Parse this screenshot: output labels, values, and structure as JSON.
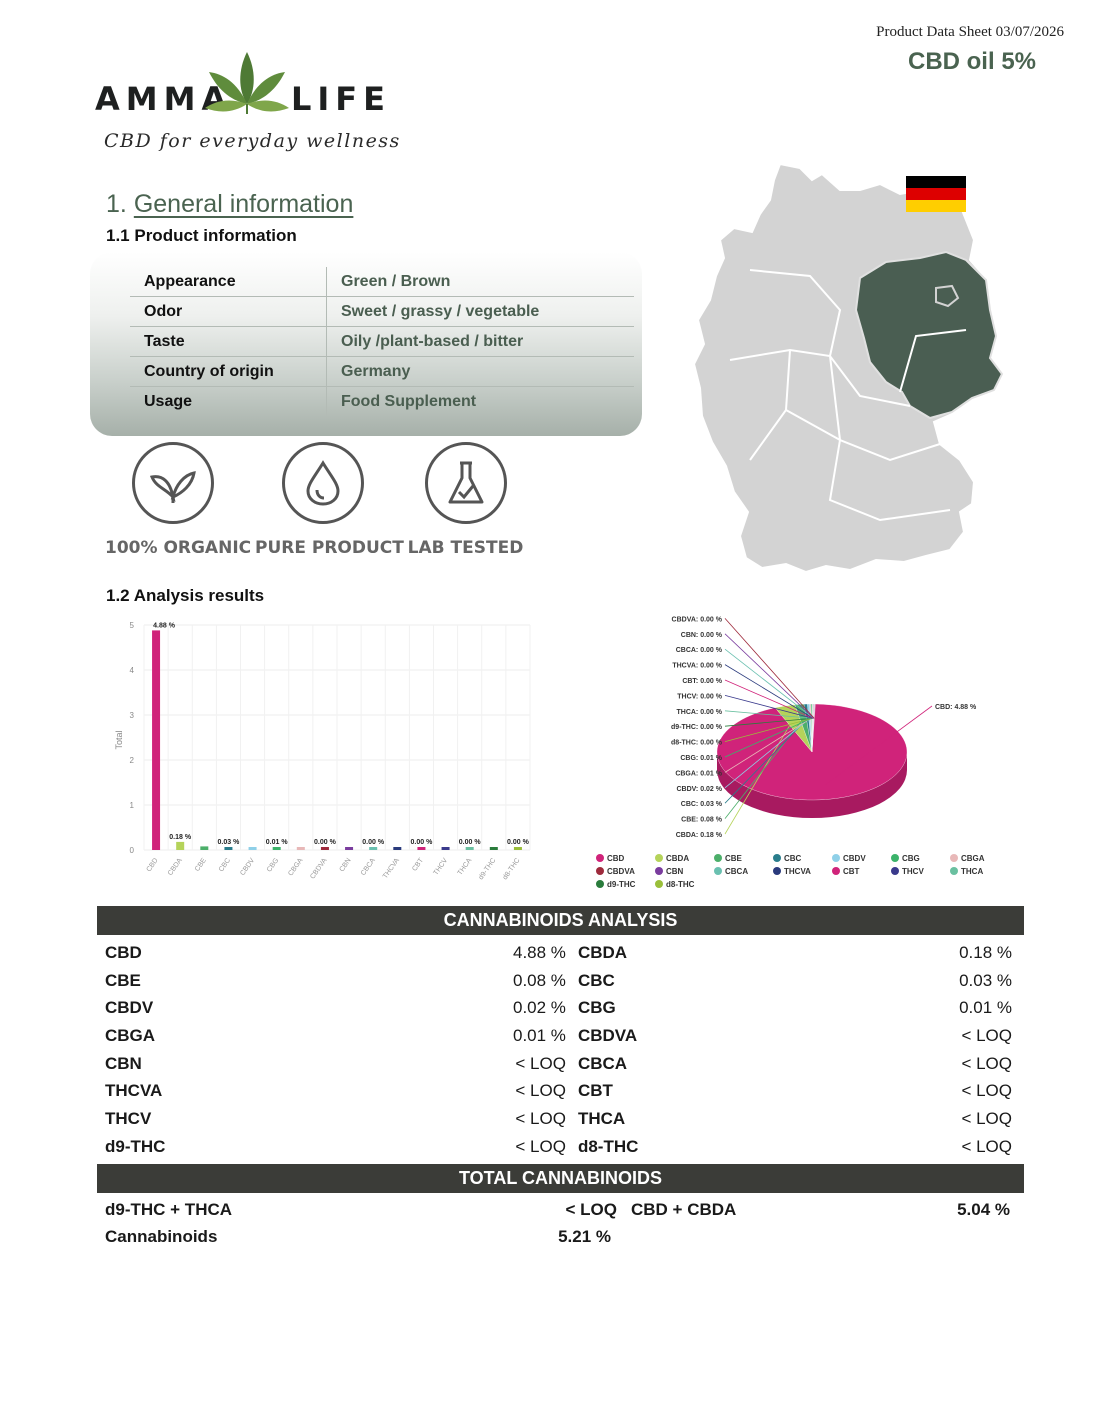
{
  "header": {
    "meta": "Product Data Sheet 03/07/2026",
    "product": "CBD oil 5%"
  },
  "brand": {
    "left": "AMMA",
    "right": "LIFE",
    "tagline": "CBD for everyday wellness"
  },
  "section1": {
    "number": "1.",
    "title": "General information"
  },
  "subsection_product": "1.1  Product information",
  "product_info": [
    {
      "key": "Appearance",
      "value": "Green / Brown"
    },
    {
      "key": "Odor",
      "value": "Sweet / grassy / vegetable"
    },
    {
      "key": "Taste",
      "value": "Oily /plant-based / bitter"
    },
    {
      "key": "Country of origin",
      "value": "Germany"
    },
    {
      "key": "Usage",
      "value": "Food Supplement"
    }
  ],
  "badges": [
    {
      "label": "100% ORGANIC",
      "icon": "leaf-icon"
    },
    {
      "label": "PURE PRODUCT",
      "icon": "drop-icon"
    },
    {
      "label": "LAB TESTED",
      "icon": "flask-icon"
    }
  ],
  "subsection_analysis": "1.2  Analysis results",
  "colors": {
    "accent": "#4a6350",
    "header_bar": "#3b3c38",
    "map_highlight": "#4a5e52",
    "map_base": "#d3d3d3",
    "cbd": "#d0237a"
  },
  "chart_data": [
    {
      "type": "bar",
      "categories": [
        "CBD",
        "CBDA",
        "CBE",
        "CBC",
        "CBDV",
        "CBG",
        "CBGA",
        "CBDVA",
        "CBN",
        "CBCA",
        "THCVA",
        "CBT",
        "THCV",
        "THCA",
        "d9-THC",
        "d8-THC"
      ],
      "values": [
        4.88,
        0.18,
        0.08,
        0.03,
        0.02,
        0.01,
        0.01,
        0,
        0,
        0,
        0,
        0,
        0,
        0,
        0,
        0
      ],
      "data_labels": [
        "4.88 %",
        "0.18 %",
        "",
        "0.03 %",
        "",
        "0.01 %",
        "",
        "0.00 %",
        "",
        "0.00 %",
        "",
        "0.00 %",
        "",
        "0.00 %",
        "",
        "0.00 %"
      ],
      "colors": [
        "#d0237a",
        "#b5d35a",
        "#4caf6a",
        "#2a7d8c",
        "#8fd0e8",
        "#3bb36a",
        "#e8b8b8",
        "#9e2a3c",
        "#7a3c9e",
        "#6ac0b0",
        "#2a3a7c",
        "#d0237a",
        "#3a3a8c",
        "#6ac0a0",
        "#2a7c3c",
        "#9abf3a"
      ],
      "ylabel": "Total",
      "yticks": [
        0,
        1,
        2,
        3,
        4,
        5
      ],
      "ylim": [
        0,
        5
      ]
    },
    {
      "type": "pie",
      "slices": [
        {
          "label": "CBD: 4.88 %",
          "value": 4.88,
          "color": "#d0237a"
        },
        {
          "label": "CBDA: 0.18 %",
          "value": 0.18,
          "color": "#b5d35a"
        },
        {
          "label": "CBE: 0.08 %",
          "value": 0.08,
          "color": "#4caf6a"
        },
        {
          "label": "CBC: 0.03 %",
          "value": 0.03,
          "color": "#2a7d8c"
        },
        {
          "label": "CBDV: 0.02 %",
          "value": 0.02,
          "color": "#8fd0e8"
        },
        {
          "label": "CBGA: 0.01 %",
          "value": 0.01,
          "color": "#e8b8b8"
        },
        {
          "label": "CBG: 0.01 %",
          "value": 0.01,
          "color": "#3bb36a"
        },
        {
          "label": "d8-THC: 0.00 %",
          "value": 0,
          "color": "#9abf3a"
        },
        {
          "label": "d9-THC: 0.00 %",
          "value": 0,
          "color": "#2a7c3c"
        },
        {
          "label": "THCA: 0.00 %",
          "value": 0,
          "color": "#6ac0a0"
        },
        {
          "label": "THCV: 0.00 %",
          "value": 0,
          "color": "#3a3a8c"
        },
        {
          "label": "CBT: 0.00 %",
          "value": 0,
          "color": "#d0237a"
        },
        {
          "label": "THCVA: 0.00 %",
          "value": 0,
          "color": "#2a3a7c"
        },
        {
          "label": "CBCA: 0.00 %",
          "value": 0,
          "color": "#6ac0b0"
        },
        {
          "label": "CBN: 0.00 %",
          "value": 0,
          "color": "#7a3c9e"
        },
        {
          "label": "CBDVA: 0.00 %",
          "value": 0,
          "color": "#9e2a3c"
        }
      ],
      "legend": [
        {
          "name": "CBD",
          "color": "#d0237a"
        },
        {
          "name": "CBDA",
          "color": "#b5d35a"
        },
        {
          "name": "CBE",
          "color": "#4caf6a"
        },
        {
          "name": "CBC",
          "color": "#2a7d8c"
        },
        {
          "name": "CBDV",
          "color": "#8fd0e8"
        },
        {
          "name": "CBG",
          "color": "#3bb36a"
        },
        {
          "name": "CBGA",
          "color": "#e8b8b8"
        },
        {
          "name": "CBDVA",
          "color": "#9e2a3c"
        },
        {
          "name": "CBN",
          "color": "#7a3c9e"
        },
        {
          "name": "CBCA",
          "color": "#6ac0b0"
        },
        {
          "name": "THCVA",
          "color": "#2a3a7c"
        },
        {
          "name": "CBT",
          "color": "#d0237a"
        },
        {
          "name": "THCV",
          "color": "#3a3a8c"
        },
        {
          "name": "THCA",
          "color": "#6ac0a0"
        },
        {
          "name": "d9-THC",
          "color": "#2a7c3c"
        },
        {
          "name": "d8-THC",
          "color": "#9abf3a"
        }
      ],
      "legend_placement": "bottom"
    }
  ],
  "analysis": {
    "title": "CANNABINOIDS ANALYSIS",
    "rows": [
      {
        "k1": "CBD",
        "v1": "4.88 %",
        "k2": "CBDA",
        "v2": "0.18 %"
      },
      {
        "k1": "CBE",
        "v1": "0.08 %",
        "k2": "CBC",
        "v2": "0.03 %"
      },
      {
        "k1": "CBDV",
        "v1": "0.02 %",
        "k2": "CBG",
        "v2": "0.01 %"
      },
      {
        "k1": "CBGA",
        "v1": "0.01 %",
        "k2": "CBDVA",
        "v2": "< LOQ"
      },
      {
        "k1": "CBN",
        "v1": "< LOQ",
        "k2": "CBCA",
        "v2": "< LOQ"
      },
      {
        "k1": "THCVA",
        "v1": "< LOQ",
        "k2": "CBT",
        "v2": "< LOQ"
      },
      {
        "k1": "THCV",
        "v1": "< LOQ",
        "k2": "THCA",
        "v2": "< LOQ"
      },
      {
        "k1": "d9-THC",
        "v1": "< LOQ",
        "k2": "d8-THC",
        "v2": "< LOQ"
      }
    ]
  },
  "totals": {
    "title": "TOTAL CANNABINOIDS",
    "thc_label": "d9-THC + THCA",
    "thc_value": "< LOQ",
    "cbd_label": "CBD + CBDA",
    "cbd_value": "5.04 %",
    "total_label": "Cannabinoids",
    "total_value": "5.21 %"
  }
}
